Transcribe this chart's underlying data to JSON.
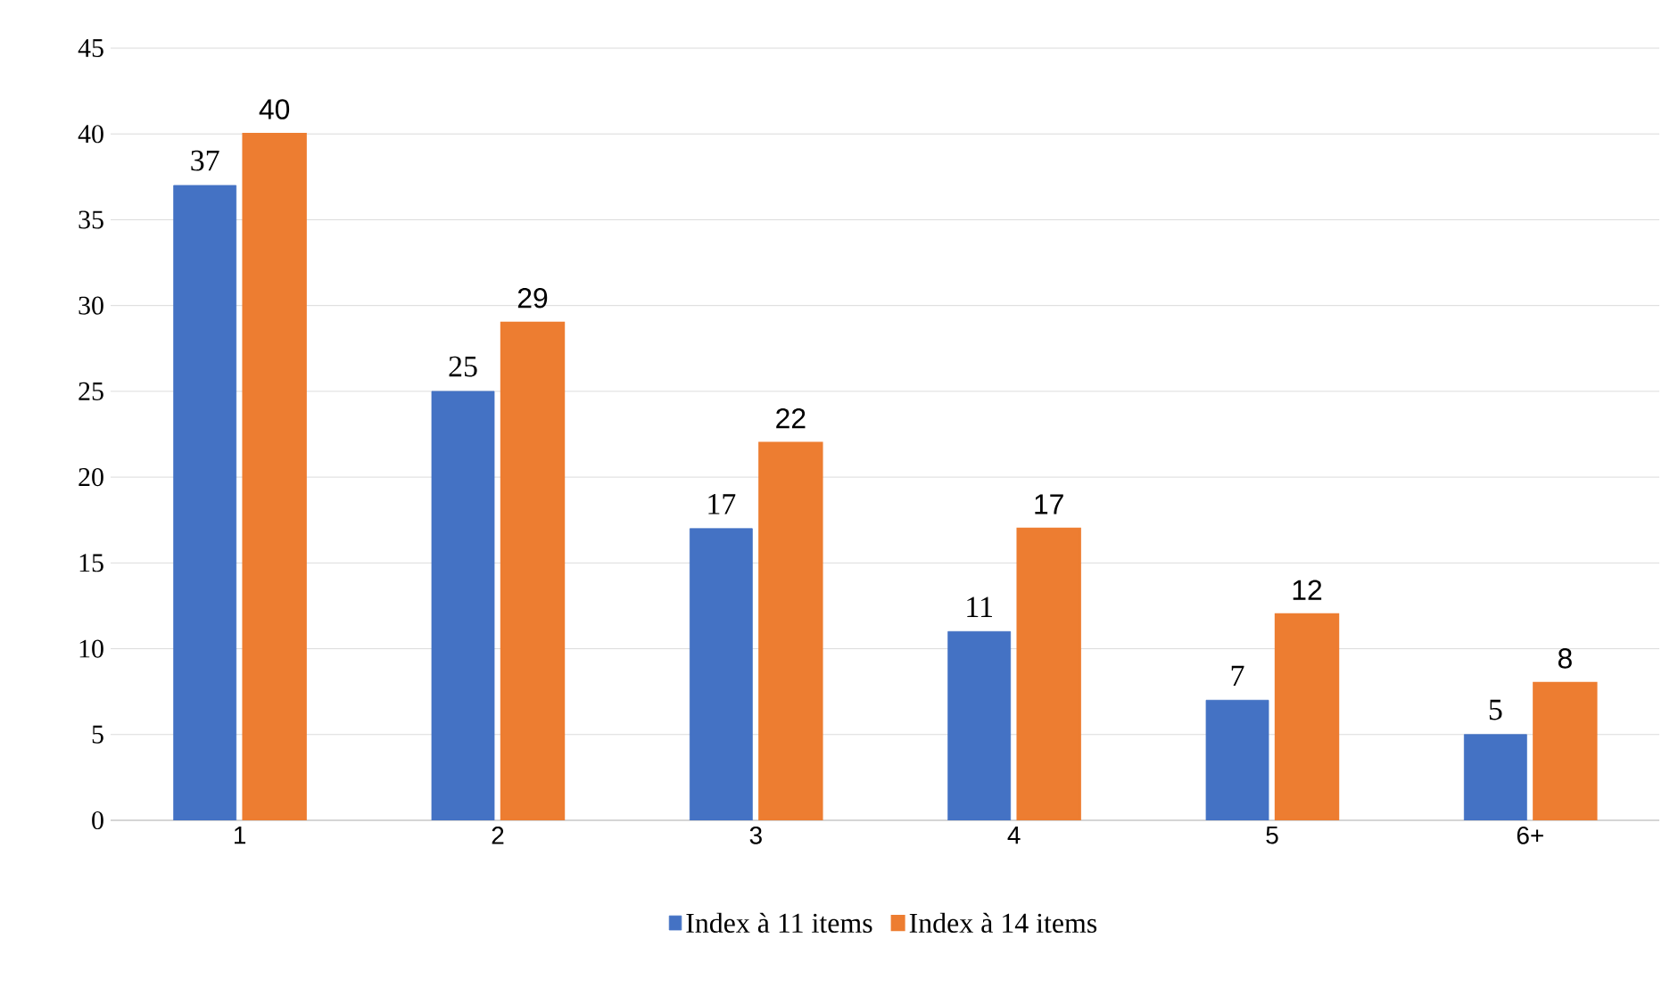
{
  "chart_data": {
    "type": "bar",
    "categories": [
      "1",
      "2",
      "3",
      "4",
      "5",
      "6+"
    ],
    "series": [
      {
        "name": "Index à 11 items",
        "color": "#4472c4",
        "values": [
          37,
          25,
          17,
          11,
          7,
          5
        ]
      },
      {
        "name": "Index à 14 items",
        "color": "#ed7d31",
        "values": [
          40,
          29,
          22,
          17,
          12,
          8
        ]
      }
    ],
    "ylim": [
      0,
      45
    ],
    "yticks": [
      0,
      5,
      10,
      15,
      20,
      25,
      30,
      35,
      40,
      45
    ],
    "grid": "y",
    "legend": "bottom",
    "data_labels": true
  }
}
